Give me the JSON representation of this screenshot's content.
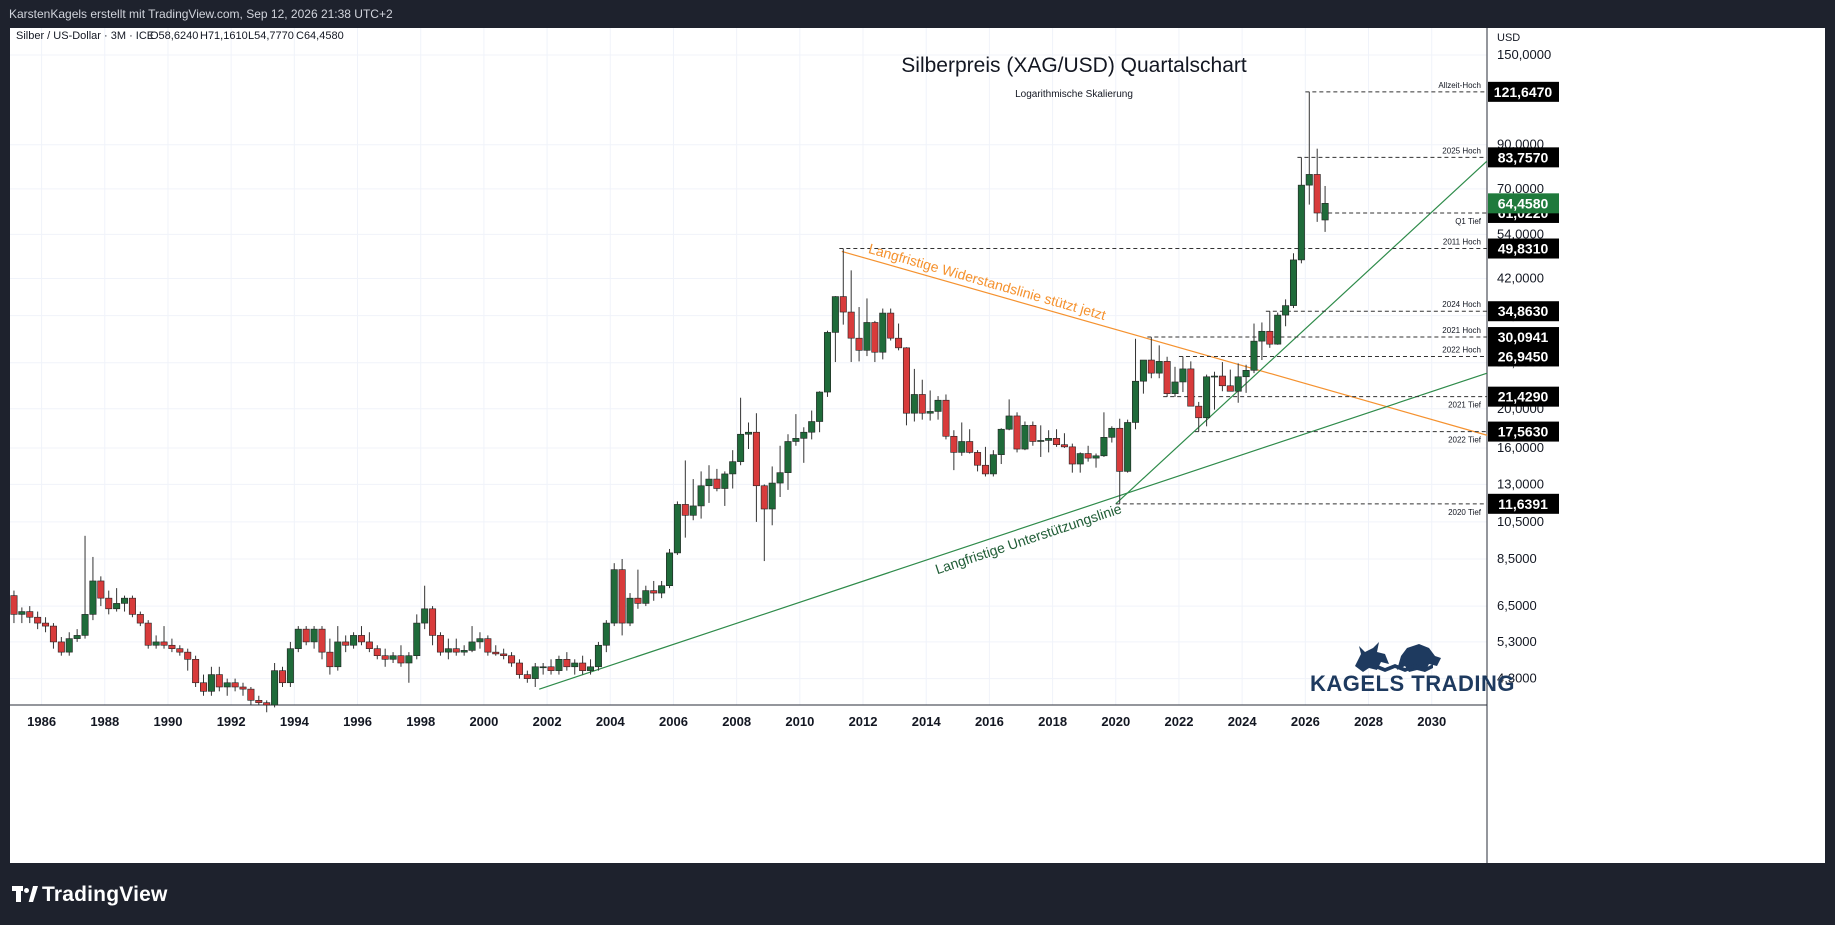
{
  "topbar": {
    "credit": "KarstenKagels erstellt mit TradingView.com, Sep 12, 2026 21:38 UTC+2"
  },
  "legend": {
    "symbol": "Silber / US-Dollar · 3M · ICE",
    "open": "O58,6240",
    "high": "H71,1610",
    "low": "L54,7770",
    "close": "C64,4580"
  },
  "currency_label": "USD",
  "brand": {
    "name": "KAGELS TRADING",
    "color": "#1e3a5f",
    "icon": "bull-and-bear-logo"
  },
  "tradingview_logo": "TradingView",
  "colors": {
    "up": "#1f6b3a",
    "down": "#d83b3b",
    "wick": "#333333",
    "support": "#2e8b4a",
    "resistance": "#f5922f",
    "label_bg": "#000000",
    "current_bg": "#1f7a3c"
  },
  "chart_data": {
    "type": "candlestick",
    "title": "Silberpreis (XAG/USD) Quartalschart",
    "subtitle": "Logarithmische Skalierung",
    "y_scale": "log",
    "ylim": [
      3.7,
      175
    ],
    "xlim": [
      1985.0,
      2031.75
    ],
    "x_ticks": [
      "1986",
      "1988",
      "1990",
      "1992",
      "1994",
      "1996",
      "1998",
      "2000",
      "2002",
      "2004",
      "2006",
      "2008",
      "2010",
      "2012",
      "2014",
      "2016",
      "2018",
      "2020",
      "2022",
      "2024",
      "2026",
      "2028",
      "2030"
    ],
    "y_ticks": [
      "150,0000",
      "90,0000",
      "70,0000",
      "54,0000",
      "42,0000",
      "34,0000",
      "26,0000",
      "20,0000",
      "16,0000",
      "13,0000",
      "10,5000",
      "8,5000",
      "6,5000",
      "5,3000",
      "4,3000"
    ],
    "candles": [
      [
        1985.0,
        6.9,
        7.1,
        5.9,
        6.2
      ],
      [
        1985.25,
        6.2,
        6.45,
        5.9,
        6.3
      ],
      [
        1985.5,
        6.3,
        6.5,
        5.9,
        6.1
      ],
      [
        1985.75,
        6.1,
        6.3,
        5.7,
        5.9
      ],
      [
        1986.0,
        5.9,
        6.1,
        5.6,
        5.8
      ],
      [
        1986.25,
        5.8,
        5.9,
        5.1,
        5.3
      ],
      [
        1986.5,
        5.3,
        5.45,
        4.9,
        5.0
      ],
      [
        1986.75,
        5.0,
        5.6,
        4.9,
        5.4
      ],
      [
        1987.0,
        5.4,
        5.7,
        5.3,
        5.5
      ],
      [
        1987.25,
        5.5,
        9.7,
        5.4,
        6.2
      ],
      [
        1987.5,
        6.2,
        8.6,
        6.0,
        7.5
      ],
      [
        1987.75,
        7.5,
        7.7,
        6.5,
        6.8
      ],
      [
        1988.0,
        6.8,
        7.1,
        6.2,
        6.4
      ],
      [
        1988.25,
        6.4,
        7.2,
        6.3,
        6.6
      ],
      [
        1988.5,
        6.6,
        6.9,
        6.3,
        6.8
      ],
      [
        1988.75,
        6.8,
        6.9,
        6.1,
        6.2
      ],
      [
        1989.0,
        6.2,
        6.3,
        5.8,
        5.9
      ],
      [
        1989.25,
        5.9,
        6.0,
        5.1,
        5.2
      ],
      [
        1989.5,
        5.2,
        5.5,
        5.1,
        5.3
      ],
      [
        1989.75,
        5.3,
        5.8,
        5.1,
        5.2
      ],
      [
        1990.0,
        5.2,
        5.4,
        5.0,
        5.1
      ],
      [
        1990.25,
        5.1,
        5.2,
        4.9,
        5.0
      ],
      [
        1990.5,
        5.0,
        5.1,
        4.5,
        4.8
      ],
      [
        1990.75,
        4.8,
        4.9,
        4.1,
        4.2
      ],
      [
        1991.0,
        4.2,
        4.4,
        3.9,
        4.0
      ],
      [
        1991.25,
        4.0,
        4.6,
        3.9,
        4.4
      ],
      [
        1991.5,
        4.4,
        4.6,
        4.0,
        4.1
      ],
      [
        1991.75,
        4.1,
        4.3,
        3.9,
        4.2
      ],
      [
        1992.0,
        4.2,
        4.3,
        4.0,
        4.1
      ],
      [
        1992.25,
        4.1,
        4.2,
        3.9,
        4.05
      ],
      [
        1992.5,
        4.05,
        4.1,
        3.7,
        3.8
      ],
      [
        1992.75,
        3.8,
        3.9,
        3.7,
        3.75
      ],
      [
        1993.0,
        3.75,
        3.8,
        3.55,
        3.7
      ],
      [
        1993.25,
        3.7,
        4.7,
        3.65,
        4.5
      ],
      [
        1993.5,
        4.5,
        4.6,
        4.1,
        4.2
      ],
      [
        1993.75,
        4.2,
        5.3,
        4.1,
        5.1
      ],
      [
        1994.0,
        5.1,
        5.8,
        5.0,
        5.7
      ],
      [
        1994.25,
        5.7,
        5.8,
        5.2,
        5.3
      ],
      [
        1994.5,
        5.3,
        5.8,
        5.1,
        5.7
      ],
      [
        1994.75,
        5.7,
        5.8,
        4.8,
        5.0
      ],
      [
        1995.0,
        5.0,
        5.4,
        4.4,
        4.6
      ],
      [
        1995.25,
        4.6,
        5.8,
        4.5,
        5.3
      ],
      [
        1995.5,
        5.3,
        5.5,
        5.0,
        5.2
      ],
      [
        1995.75,
        5.2,
        5.6,
        5.1,
        5.5
      ],
      [
        1996.0,
        5.5,
        5.8,
        5.2,
        5.3
      ],
      [
        1996.25,
        5.3,
        5.6,
        5.0,
        5.1
      ],
      [
        1996.5,
        5.1,
        5.2,
        4.8,
        4.9
      ],
      [
        1996.75,
        4.9,
        5.1,
        4.6,
        4.8
      ],
      [
        1997.0,
        4.8,
        5.0,
        4.7,
        4.9
      ],
      [
        1997.25,
        4.9,
        5.2,
        4.6,
        4.7
      ],
      [
        1997.5,
        4.7,
        5.0,
        4.2,
        4.9
      ],
      [
        1997.75,
        4.9,
        6.2,
        4.8,
        5.9
      ],
      [
        1998.0,
        5.9,
        7.3,
        5.7,
        6.4
      ],
      [
        1998.25,
        6.4,
        6.5,
        5.2,
        5.5
      ],
      [
        1998.5,
        5.5,
        5.6,
        4.9,
        5.0
      ],
      [
        1998.75,
        5.0,
        5.4,
        4.8,
        5.1
      ],
      [
        1999.0,
        5.1,
        5.4,
        4.9,
        5.0
      ],
      [
        1999.25,
        5.0,
        5.2,
        4.9,
        5.05
      ],
      [
        1999.5,
        5.05,
        5.8,
        5.0,
        5.3
      ],
      [
        1999.75,
        5.3,
        5.6,
        5.1,
        5.4
      ],
      [
        2000.0,
        5.4,
        5.5,
        4.9,
        5.0
      ],
      [
        2000.25,
        5.0,
        5.2,
        4.9,
        4.95
      ],
      [
        2000.5,
        4.95,
        5.1,
        4.8,
        4.9
      ],
      [
        2000.75,
        4.9,
        5.0,
        4.6,
        4.7
      ],
      [
        2001.0,
        4.7,
        4.8,
        4.3,
        4.4
      ],
      [
        2001.25,
        4.4,
        4.5,
        4.2,
        4.3
      ],
      [
        2001.5,
        4.3,
        4.7,
        4.1,
        4.6
      ],
      [
        2001.75,
        4.6,
        4.7,
        4.4,
        4.6
      ],
      [
        2002.0,
        4.6,
        4.8,
        4.4,
        4.5
      ],
      [
        2002.25,
        4.5,
        4.9,
        4.4,
        4.8
      ],
      [
        2002.5,
        4.8,
        5.0,
        4.5,
        4.6
      ],
      [
        2002.75,
        4.6,
        4.8,
        4.4,
        4.7
      ],
      [
        2003.0,
        4.7,
        4.9,
        4.4,
        4.5
      ],
      [
        2003.25,
        4.5,
        4.8,
        4.4,
        4.6
      ],
      [
        2003.5,
        4.6,
        5.3,
        4.5,
        5.2
      ],
      [
        2003.75,
        5.2,
        6.0,
        5.0,
        5.9
      ],
      [
        2004.0,
        5.9,
        8.3,
        5.8,
        8.0
      ],
      [
        2004.25,
        8.0,
        8.5,
        5.5,
        5.9
      ],
      [
        2004.5,
        5.9,
        7.0,
        5.8,
        6.8
      ],
      [
        2004.75,
        6.8,
        8.0,
        6.4,
        6.6
      ],
      [
        2005.0,
        6.6,
        7.3,
        6.5,
        7.1
      ],
      [
        2005.25,
        7.1,
        7.5,
        6.7,
        7.0
      ],
      [
        2005.5,
        7.0,
        7.5,
        6.8,
        7.3
      ],
      [
        2005.75,
        7.3,
        9.0,
        7.2,
        8.8
      ],
      [
        2006.0,
        8.8,
        11.8,
        8.7,
        11.6
      ],
      [
        2006.25,
        11.6,
        14.9,
        9.6,
        10.9
      ],
      [
        2006.5,
        10.9,
        13.4,
        10.6,
        11.5
      ],
      [
        2006.75,
        11.5,
        14.0,
        10.7,
        12.9
      ],
      [
        2007.0,
        12.9,
        14.5,
        11.7,
        13.4
      ],
      [
        2007.25,
        13.4,
        14.2,
        12.5,
        12.7
      ],
      [
        2007.5,
        12.7,
        14.0,
        11.5,
        13.8
      ],
      [
        2007.75,
        13.8,
        15.8,
        12.7,
        14.8
      ],
      [
        2008.0,
        14.8,
        21.3,
        14.5,
        17.3
      ],
      [
        2008.25,
        17.3,
        18.5,
        15.9,
        17.5
      ],
      [
        2008.5,
        17.5,
        19.5,
        10.5,
        12.9
      ],
      [
        2008.75,
        12.9,
        13.0,
        8.4,
        11.3
      ],
      [
        2009.0,
        11.3,
        14.4,
        10.3,
        13.1
      ],
      [
        2009.25,
        13.1,
        16.2,
        12.1,
        13.9
      ],
      [
        2009.5,
        13.9,
        17.3,
        12.6,
        16.6
      ],
      [
        2009.75,
        16.6,
        19.4,
        16.2,
        16.9
      ],
      [
        2010.0,
        16.9,
        18.0,
        14.7,
        17.5
      ],
      [
        2010.25,
        17.5,
        19.8,
        16.8,
        18.6
      ],
      [
        2010.5,
        18.6,
        22.1,
        17.5,
        22.0
      ],
      [
        2010.75,
        22.0,
        31.2,
        21.4,
        30.9
      ],
      [
        2011.0,
        30.9,
        38.0,
        26.1,
        37.9
      ],
      [
        2011.25,
        37.9,
        49.8,
        32.3,
        34.7
      ],
      [
        2011.5,
        34.7,
        44.0,
        26.1,
        29.9
      ],
      [
        2011.75,
        29.9,
        35.7,
        26.2,
        27.9
      ],
      [
        2012.0,
        27.9,
        37.5,
        27.0,
        32.7
      ],
      [
        2012.25,
        32.7,
        33.0,
        26.1,
        27.6
      ],
      [
        2012.5,
        27.6,
        35.4,
        26.5,
        34.5
      ],
      [
        2012.75,
        34.5,
        35.4,
        29.5,
        29.9
      ],
      [
        2013.0,
        29.9,
        32.5,
        27.9,
        28.3
      ],
      [
        2013.25,
        28.3,
        28.4,
        18.2,
        19.5
      ],
      [
        2013.5,
        19.5,
        25.1,
        18.6,
        21.7
      ],
      [
        2013.75,
        21.7,
        23.6,
        18.8,
        19.5
      ],
      [
        2014.0,
        19.5,
        22.2,
        18.7,
        19.7
      ],
      [
        2014.25,
        19.7,
        21.5,
        18.8,
        21.0
      ],
      [
        2014.5,
        21.0,
        21.7,
        16.8,
        17.1
      ],
      [
        2014.75,
        17.1,
        17.7,
        14.1,
        15.6
      ],
      [
        2015.0,
        15.6,
        18.5,
        15.3,
        16.6
      ],
      [
        2015.25,
        16.6,
        17.8,
        15.5,
        15.6
      ],
      [
        2015.5,
        15.6,
        15.8,
        14.0,
        14.5
      ],
      [
        2015.75,
        14.5,
        16.1,
        13.6,
        13.8
      ],
      [
        2016.0,
        13.8,
        15.8,
        13.6,
        15.4
      ],
      [
        2016.25,
        15.4,
        17.9,
        14.6,
        17.8
      ],
      [
        2016.5,
        17.8,
        21.1,
        17.7,
        19.2
      ],
      [
        2016.75,
        19.2,
        19.6,
        15.6,
        15.9
      ],
      [
        2017.0,
        15.9,
        18.6,
        15.8,
        18.2
      ],
      [
        2017.25,
        18.2,
        18.6,
        16.2,
        16.6
      ],
      [
        2017.5,
        16.6,
        18.2,
        15.2,
        16.7
      ],
      [
        2017.75,
        16.7,
        17.7,
        15.6,
        16.9
      ],
      [
        2018.0,
        16.9,
        17.8,
        16.1,
        16.3
      ],
      [
        2018.25,
        16.3,
        17.4,
        16.0,
        16.1
      ],
      [
        2018.5,
        16.1,
        16.4,
        13.9,
        14.6
      ],
      [
        2018.75,
        14.6,
        15.6,
        13.9,
        15.5
      ],
      [
        2019.0,
        15.5,
        16.2,
        14.8,
        15.1
      ],
      [
        2019.25,
        15.1,
        15.5,
        14.3,
        15.3
      ],
      [
        2019.5,
        15.3,
        19.6,
        15.2,
        17.0
      ],
      [
        2019.75,
        17.0,
        18.1,
        16.5,
        17.9
      ],
      [
        2020.0,
        17.9,
        18.9,
        11.64,
        14.0
      ],
      [
        2020.25,
        14.0,
        18.8,
        13.9,
        18.5
      ],
      [
        2020.5,
        18.5,
        29.8,
        17.8,
        23.4
      ],
      [
        2020.75,
        23.4,
        26.3,
        21.8,
        26.4
      ],
      [
        2021.0,
        26.4,
        30.09,
        23.8,
        24.5
      ],
      [
        2021.25,
        24.5,
        28.7,
        23.8,
        26.2
      ],
      [
        2021.5,
        26.2,
        26.9,
        21.4,
        21.8
      ],
      [
        2021.75,
        21.8,
        25.4,
        21.4,
        23.3
      ],
      [
        2022.0,
        23.3,
        26.94,
        22.0,
        25.1
      ],
      [
        2022.25,
        25.1,
        26.2,
        20.5,
        20.3
      ],
      [
        2022.5,
        20.3,
        20.8,
        17.56,
        19.0
      ],
      [
        2022.75,
        19.0,
        24.3,
        18.1,
        24.0
      ],
      [
        2023.0,
        24.0,
        24.7,
        19.9,
        24.1
      ],
      [
        2023.25,
        24.1,
        26.1,
        22.1,
        22.8
      ],
      [
        2023.5,
        22.8,
        25.0,
        22.1,
        22.1
      ],
      [
        2023.75,
        22.1,
        25.9,
        20.7,
        24.0
      ],
      [
        2024.0,
        24.0,
        25.7,
        21.9,
        24.9
      ],
      [
        2024.25,
        24.9,
        32.5,
        24.5,
        29.4
      ],
      [
        2024.5,
        29.4,
        32.7,
        26.4,
        31.1
      ],
      [
        2024.75,
        31.1,
        34.86,
        28.3,
        28.9
      ],
      [
        2025.0,
        28.9,
        34.6,
        28.8,
        34.1
      ],
      [
        2025.25,
        34.1,
        37.3,
        32.0,
        36.0
      ],
      [
        2025.5,
        36.0,
        48.5,
        35.5,
        46.7
      ],
      [
        2025.75,
        46.7,
        83.76,
        45.8,
        71.5
      ],
      [
        2026.0,
        71.5,
        121.65,
        64.0,
        76.0
      ],
      [
        2026.25,
        76.0,
        88.0,
        58.0,
        61.0
      ],
      [
        2026.5,
        58.62,
        71.16,
        54.78,
        64.46
      ]
    ],
    "lines": [
      {
        "name": "Langfristige Widerstandslinie stützt jetzt",
        "from": [
          2011.33,
          49.0
        ],
        "to": [
          2031.75,
          17.2
        ]
      },
      {
        "name": "Langfristige Unterstützungslinie",
        "from": [
          2001.75,
          4.05
        ],
        "to": [
          2031.75,
          24.5
        ]
      },
      {
        "name": "",
        "from": [
          2020.0,
          11.64
        ],
        "to": [
          2031.75,
          82.0
        ]
      }
    ],
    "levels": [
      {
        "name": "Allzeit-Hoch",
        "value": 121.647,
        "label": "121,6470",
        "from_x": 2026.0
      },
      {
        "name": "2025 Hoch",
        "value": 83.757,
        "label": "83,7570",
        "from_x": 2025.75
      },
      {
        "name": "Q1 Tief",
        "value": 61.022,
        "label": "61,0220",
        "from_x": 2026.5
      },
      {
        "name": "2011 Hoch",
        "value": 49.831,
        "label": "49,8310",
        "from_x": 2011.25
      },
      {
        "name": "2024 Hoch",
        "value": 34.863,
        "label": "34,8630",
        "from_x": 2024.75
      },
      {
        "name": "2021 Hoch",
        "value": 30.0941,
        "label": "30,0941",
        "from_x": 2021.0
      },
      {
        "name": "2022 Hoch",
        "value": 26.945,
        "label": "26,9450",
        "from_x": 2022.0
      },
      {
        "name": "2021 Tief",
        "value": 21.429,
        "label": "21,4290",
        "from_x": 2021.5
      },
      {
        "name": "2022 Tief",
        "value": 17.563,
        "label": "17,5630",
        "from_x": 2022.5
      },
      {
        "name": "2020 Tief",
        "value": 11.6391,
        "label": "11,6391",
        "from_x": 2020.0
      }
    ],
    "current": {
      "value": 64.458,
      "label": "64,4580"
    }
  }
}
